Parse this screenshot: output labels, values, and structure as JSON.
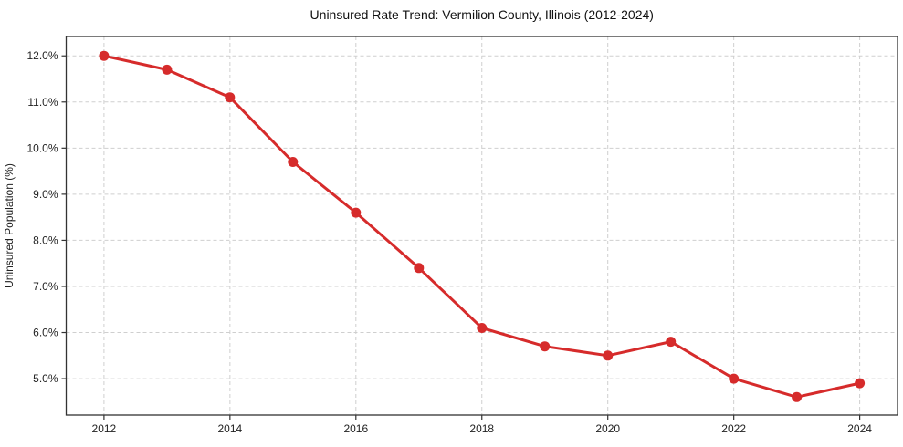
{
  "chart_data": {
    "type": "line",
    "title": "Uninsured Rate Trend: Vermilion County, Illinois (2012-2024)",
    "xlabel": "",
    "ylabel": "Uninsured Population (%)",
    "x": [
      2012,
      2013,
      2014,
      2015,
      2016,
      2017,
      2018,
      2019,
      2020,
      2021,
      2022,
      2023,
      2024
    ],
    "values": [
      12.0,
      11.7,
      11.1,
      9.7,
      8.6,
      7.4,
      6.1,
      5.7,
      5.5,
      5.8,
      5.0,
      4.6,
      4.9
    ],
    "x_ticks": [
      2012,
      2014,
      2016,
      2018,
      2020,
      2022,
      2024
    ],
    "x_tick_labels": [
      "2012",
      "2014",
      "2016",
      "2018",
      "2020",
      "2022",
      "2024"
    ],
    "y_ticks": [
      5,
      6,
      7,
      8,
      9,
      10,
      11,
      12
    ],
    "y_tick_labels": [
      "5.0%",
      "6.0%",
      "7.0%",
      "8.0%",
      "9.0%",
      "10.0%",
      "11.0%",
      "12.0%"
    ],
    "xlim": [
      2011.4,
      2024.6
    ],
    "ylim": [
      4.21,
      12.42
    ],
    "grid": true,
    "legend": false,
    "marker": "o",
    "colors": {
      "line": "#d62b2b",
      "marker": "#d62b2b",
      "grid": "#cfcfcf",
      "spine": "#333333",
      "text": "#222222",
      "background": "#ffffff"
    }
  }
}
